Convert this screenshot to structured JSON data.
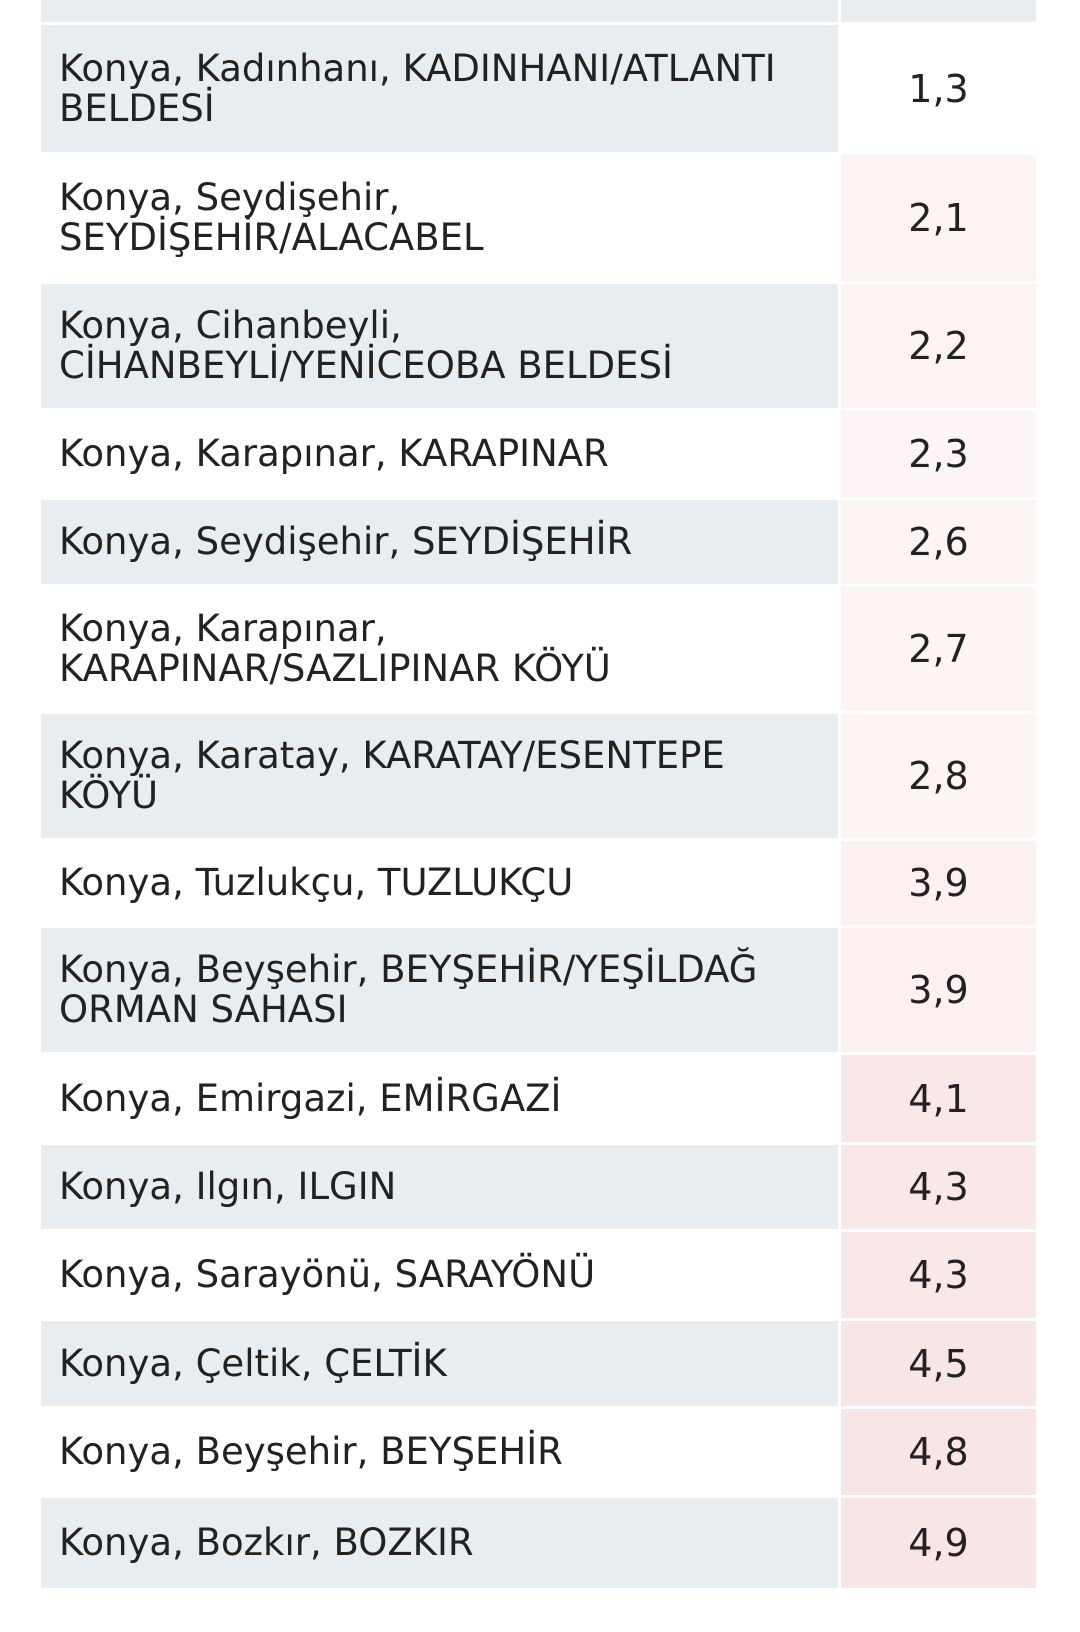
{
  "table": {
    "rows": [
      {
        "name": "",
        "value": ""
      },
      {
        "name": "Konya, Kadınhanı, KADINHANI/ATLANTI BELDESİ",
        "value": "1,3"
      },
      {
        "name": "Konya, Seydişehir, SEYDİŞEHİR/ALACABEL",
        "value": "2,1"
      },
      {
        "name": "Konya, Cihanbeyli, CİHANBEYLİ/YENİCEOBA BELDESİ",
        "value": "2,2"
      },
      {
        "name": "Konya, Karapınar, KARAPINAR",
        "value": "2,3"
      },
      {
        "name": "Konya, Seydişehir, SEYDİŞEHİR",
        "value": "2,6"
      },
      {
        "name": "Konya, Karapınar, KARAPINAR/SAZLIPINAR KÖYÜ",
        "value": "2,7"
      },
      {
        "name": "Konya, Karatay, KARATAY/ESENTEPE KÖYÜ",
        "value": "2,8"
      },
      {
        "name": "Konya, Tuzlukçu, TUZLUKÇU",
        "value": "3,9"
      },
      {
        "name": "Konya, Beyşehir, BEYŞEHİR/YEŞİLDAĞ ORMAN SAHASI",
        "value": "3,9"
      },
      {
        "name": "Konya, Emirgazi, EMİRGAZİ",
        "value": "4,1"
      },
      {
        "name": "Konya, Ilgın, ILGIN",
        "value": "4,3"
      },
      {
        "name": "Konya, Sarayönü, SARAYÖNÜ",
        "value": "4,3"
      },
      {
        "name": "Konya, Çeltik, ÇELTİK",
        "value": "4,5"
      },
      {
        "name": "Konya, Beyşehir, BEYŞEHİR",
        "value": "4,8"
      },
      {
        "name": "Konya, Bozkır, BOZKIR",
        "value": "4,9"
      }
    ],
    "value_colors": [
      "#e8edf2",
      "#ffffff",
      "#fdf3f3",
      "#fdf3f3",
      "#fdf5f5",
      "#fdf4f4",
      "#fdf4f4",
      "#fdf4f4",
      "#fcf0f0",
      "#fcf0f0",
      "#f9e8e8",
      "#f9e8e8",
      "#f9e8e8",
      "#f8e6e6",
      "#f8e6e6",
      "#f8e6e6"
    ]
  }
}
